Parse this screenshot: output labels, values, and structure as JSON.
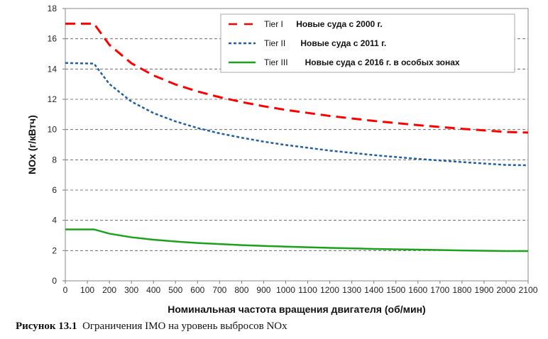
{
  "chart_data": {
    "type": "line",
    "title": "",
    "xlabel": "Номинальная частота вращения двигателя (об/мин)",
    "ylabel": "NOx (г/кВтч)",
    "xlim": [
      0,
      2100
    ],
    "ylim": [
      0,
      18
    ],
    "xticks": [
      "0",
      "100",
      "200",
      "300",
      "400",
      "500",
      "600",
      "700",
      "800",
      "900",
      "1000",
      "1100",
      "1200",
      "1300",
      "1400",
      "1500",
      "1600",
      "1700",
      "1800",
      "1900",
      "2000",
      "2100"
    ],
    "yticks": [
      "0",
      "2",
      "4",
      "6",
      "8",
      "10",
      "12",
      "14",
      "16",
      "18"
    ],
    "grid": "horizontal dashed",
    "legend_placement": "top-right",
    "x": [
      0,
      130,
      200,
      300,
      400,
      500,
      600,
      700,
      800,
      900,
      1000,
      1200,
      1400,
      1600,
      1800,
      2000,
      2100
    ],
    "series": [
      {
        "name": "Tier I",
        "desc": "Новые суда с 2000 г.",
        "color": "#ff0000",
        "style": "dashed",
        "values": [
          17.0,
          17.0,
          15.6,
          14.38,
          13.58,
          12.98,
          12.52,
          12.14,
          11.82,
          11.54,
          11.3,
          10.9,
          10.57,
          10.29,
          10.05,
          9.84,
          9.8
        ]
      },
      {
        "name": "Tier II",
        "desc": "Новые суда с 2011 г.",
        "color": "#1f5fa8",
        "style": "dotted",
        "values": [
          14.4,
          14.36,
          13.01,
          11.85,
          11.09,
          10.54,
          10.1,
          9.75,
          9.46,
          9.2,
          8.98,
          8.61,
          8.31,
          8.06,
          7.85,
          7.66,
          7.64
        ]
      },
      {
        "name": "Tier III",
        "desc": "Новые суда с 2016 г. в особых зонах",
        "color": "#1aa31a",
        "style": "solid",
        "values": [
          3.4,
          3.4,
          3.12,
          2.88,
          2.72,
          2.6,
          2.5,
          2.43,
          2.36,
          2.31,
          2.26,
          2.18,
          2.11,
          2.06,
          2.01,
          1.97,
          1.97
        ]
      }
    ]
  },
  "caption": {
    "number": "Рисунок 13.1",
    "text": "Ограничения IMO на уровень выбросов NOx"
  }
}
